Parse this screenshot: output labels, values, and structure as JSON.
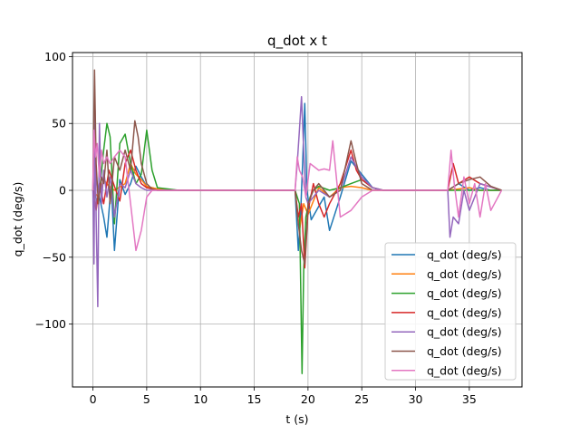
{
  "chart_data": {
    "type": "line",
    "title": "q_dot x t",
    "xlabel": "t (s)",
    "ylabel": "q_dot (deg/s)",
    "xlim": [
      -1.9,
      39.9
    ],
    "ylim": [
      -147,
      103
    ],
    "xticks": [
      0,
      5,
      10,
      15,
      20,
      25,
      30,
      35
    ],
    "yticks": [
      -100,
      -50,
      0,
      50,
      100
    ],
    "grid": true,
    "legend_position": "lower-right",
    "series": [
      {
        "name": "q_dot (deg/s)",
        "color": "#1f77b4",
        "x": [
          0,
          0.3,
          0.6,
          1.0,
          1.3,
          1.7,
          2.0,
          2.5,
          3.0,
          3.5,
          4.0,
          4.5,
          5.0,
          6.0,
          8.0,
          12.0,
          18.8,
          19.1,
          19.3,
          19.5,
          19.7,
          19.9,
          20.3,
          21.0,
          21.5,
          22.0,
          23.0,
          24.0,
          25.0,
          26.0,
          27.0,
          28.0,
          30.0,
          33.0,
          34.0,
          35.0,
          36.0,
          37.0,
          38.0
        ],
        "y": [
          0,
          10,
          -5,
          -20,
          -35,
          5,
          -45,
          8,
          -3,
          5,
          18,
          10,
          3,
          1,
          0,
          0,
          0,
          -45,
          -20,
          20,
          65,
          0,
          -22,
          -12,
          -5,
          -30,
          -5,
          22,
          12,
          2,
          0,
          0,
          0,
          0,
          5,
          0,
          2,
          0,
          0
        ]
      },
      {
        "name": "q_dot (deg/s)",
        "color": "#ff7f0e",
        "x": [
          0,
          0.5,
          1.0,
          1.5,
          2.0,
          3.0,
          3.5,
          4.0,
          4.5,
          5.0,
          6.0,
          8.0,
          12.0,
          18.8,
          19.2,
          19.6,
          20.0,
          20.5,
          21.0,
          22.0,
          23.0,
          24.0,
          25.0,
          26.0,
          27.0,
          30.0,
          33.0,
          35.0,
          36.0,
          38.0
        ],
        "y": [
          0,
          -5,
          8,
          3,
          0,
          5,
          20,
          12,
          8,
          3,
          1,
          0,
          0,
          0,
          -30,
          -10,
          -18,
          -8,
          2,
          -5,
          2,
          3,
          2,
          0,
          0,
          0,
          0,
          2,
          0,
          0
        ]
      },
      {
        "name": "q_dot (deg/s)",
        "color": "#2ca02c",
        "x": [
          0,
          0.5,
          1.0,
          1.3,
          1.6,
          2.0,
          2.5,
          3.0,
          3.5,
          4.0,
          4.5,
          5.0,
          5.5,
          6.0,
          8.0,
          12.0,
          18.8,
          19.2,
          19.45,
          19.6,
          19.8,
          20.2,
          20.5,
          21.0,
          22.0,
          23.0,
          24.0,
          25.0,
          26.0,
          27.0,
          30.0,
          33.0,
          35.0,
          36.0,
          38.0
        ],
        "y": [
          0,
          -10,
          30,
          50,
          40,
          -25,
          35,
          42,
          20,
          5,
          12,
          45,
          15,
          2,
          0,
          0,
          0,
          -10,
          -137,
          -60,
          -20,
          -5,
          0,
          3,
          0,
          2,
          5,
          8,
          2,
          0,
          0,
          0,
          0,
          0,
          0
        ]
      },
      {
        "name": "q_dot (deg/s)",
        "color": "#d62728",
        "x": [
          0,
          0.3,
          0.6,
          1.0,
          1.5,
          2.0,
          2.5,
          3.0,
          3.5,
          4.0,
          4.5,
          5.0,
          6.0,
          8.0,
          12.0,
          18.8,
          19.1,
          19.4,
          19.7,
          20.0,
          20.5,
          21.0,
          21.5,
          22.0,
          23.0,
          24.0,
          24.5,
          25.0,
          26.0,
          27.0,
          30.0,
          33.0,
          33.5,
          34.0,
          35.0,
          36.0,
          38.0
        ],
        "y": [
          0,
          -15,
          5,
          -10,
          15,
          3,
          -8,
          20,
          30,
          15,
          5,
          2,
          0,
          0,
          0,
          0,
          -20,
          -10,
          -58,
          -15,
          5,
          -10,
          -20,
          -10,
          5,
          30,
          15,
          8,
          2,
          0,
          0,
          0,
          20,
          5,
          10,
          5,
          0
        ]
      },
      {
        "name": "q_dot (deg/s)",
        "color": "#9467bd",
        "x": [
          0,
          0.1,
          0.2,
          0.3,
          0.45,
          0.6,
          0.8,
          1.0,
          1.3,
          1.6,
          2.0,
          2.5,
          3.0,
          3.5,
          4.0,
          4.5,
          5.0,
          6.0,
          8.0,
          12.0,
          18.8,
          19.0,
          19.2,
          19.4,
          19.6,
          19.8,
          20.0,
          20.5,
          21.0,
          22.0,
          23.0,
          24.0,
          25.0,
          26.0,
          27.0,
          30.0,
          33.0,
          33.2,
          33.5,
          34.0,
          34.5,
          35.0,
          36.0,
          38.0
        ],
        "y": [
          0,
          -55,
          60,
          -20,
          -87,
          50,
          -10,
          15,
          -5,
          10,
          -20,
          5,
          2,
          15,
          5,
          2,
          0,
          0,
          0,
          0,
          0,
          20,
          45,
          70,
          30,
          -5,
          -10,
          -5,
          0,
          -5,
          0,
          25,
          10,
          2,
          0,
          0,
          0,
          -35,
          -20,
          -25,
          0,
          -15,
          5,
          0
        ]
      },
      {
        "name": "q_dot (deg/s)",
        "color": "#8c564b",
        "x": [
          0,
          0.15,
          0.3,
          0.5,
          0.8,
          1.0,
          1.3,
          1.6,
          2.0,
          2.5,
          3.0,
          3.5,
          3.9,
          4.2,
          4.5,
          5.0,
          5.5,
          6.0,
          8.0,
          12.0,
          18.8,
          19.1,
          19.4,
          19.7,
          20.0,
          20.5,
          21.0,
          22.0,
          23.0,
          24.0,
          24.5,
          25.0,
          26.0,
          27.0,
          30.0,
          33.0,
          34.0,
          35.0,
          36.0,
          37.0,
          38.0
        ],
        "y": [
          0,
          90,
          20,
          -10,
          10,
          5,
          30,
          -10,
          25,
          15,
          30,
          15,
          52,
          40,
          20,
          5,
          1,
          0,
          0,
          0,
          0,
          -25,
          -45,
          -55,
          -10,
          0,
          5,
          -5,
          0,
          37,
          20,
          5,
          0,
          0,
          0,
          0,
          5,
          8,
          10,
          3,
          0
        ]
      },
      {
        "name": "q_dot (deg/s)",
        "color": "#e377c2",
        "x": [
          0,
          0.1,
          0.25,
          0.4,
          0.6,
          0.8,
          1.0,
          1.3,
          1.6,
          2.0,
          2.5,
          3.0,
          3.5,
          4.0,
          4.5,
          5.0,
          5.5,
          6.0,
          8.0,
          12.0,
          18.8,
          19.0,
          19.2,
          19.5,
          19.8,
          20.2,
          21.0,
          21.5,
          22.0,
          22.3,
          23.0,
          24.0,
          25.0,
          26.0,
          27.0,
          30.0,
          33.0,
          33.3,
          33.6,
          34.0,
          34.5,
          35.0,
          35.5,
          36.0,
          36.5,
          37.0,
          38.0
        ],
        "y": [
          0,
          45,
          25,
          35,
          10,
          30,
          20,
          25,
          20,
          25,
          30,
          25,
          -10,
          -45,
          -30,
          -5,
          0,
          0,
          0,
          0,
          0,
          25,
          15,
          10,
          -5,
          20,
          15,
          16,
          15,
          37,
          -20,
          -15,
          -5,
          0,
          0,
          0,
          0,
          30,
          5,
          -20,
          10,
          -10,
          5,
          -20,
          5,
          -15,
          0
        ]
      }
    ]
  }
}
